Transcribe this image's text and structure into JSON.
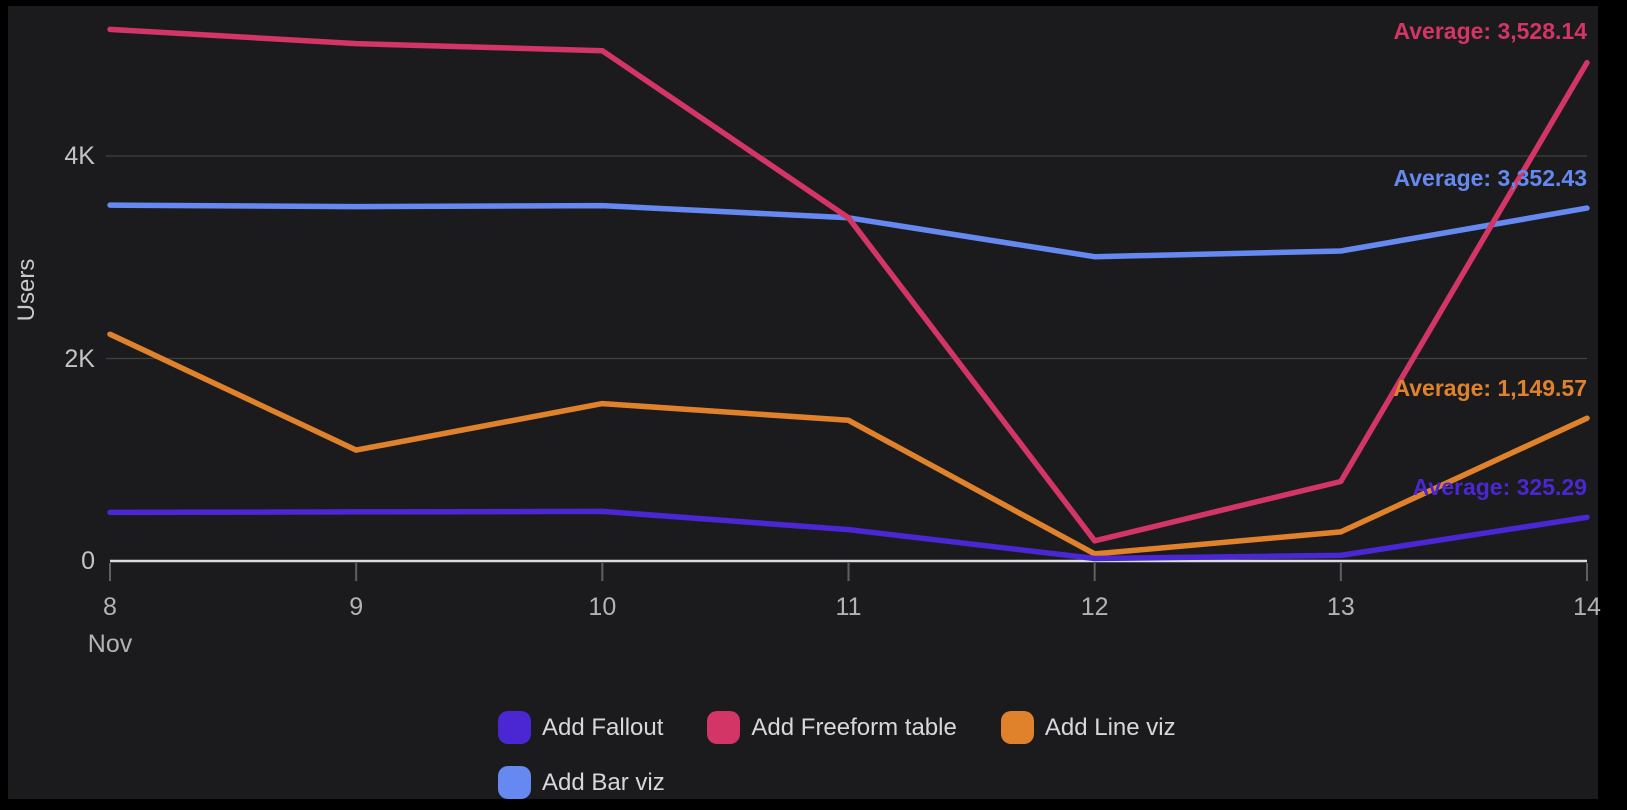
{
  "widget": {
    "name": "users-trend-line-chart"
  },
  "colors": {
    "background": "#1b1b1d",
    "frame": "#000000",
    "gridline": "#404040",
    "axis_line": "#dcdcdc",
    "tick": "#5f5f5f",
    "y_label_text": "#c4c4c4",
    "x_label_text": "#b3b3b3",
    "legend_text": "#d8d8d8"
  },
  "chart_data": {
    "type": "line",
    "title": "",
    "ylabel": "Users",
    "xlabel": "",
    "x_month": "Nov",
    "x_labels": [
      "8",
      "9",
      "10",
      "11",
      "12",
      "13",
      "14"
    ],
    "y_ticks": [
      {
        "value": 0,
        "label": "0"
      },
      {
        "value": 2000,
        "label": "2K"
      },
      {
        "value": 4000,
        "label": "4K"
      }
    ],
    "ylim": [
      0,
      5550
    ],
    "grid": "horizontal",
    "legend_position": "bottom",
    "series": [
      {
        "name": "Add Fallout",
        "color": "#4b26d3",
        "values": [
          480,
          485,
          490,
          310,
          25,
          55,
          432
        ],
        "average": 325.29,
        "average_label": "Average: 325.29"
      },
      {
        "name": "Add Freeform table",
        "color": "#d23566",
        "values": [
          5250,
          5110,
          5040,
          3390,
          200,
          785,
          4922
        ],
        "average": 3528.14,
        "average_label": "Average: 3,528.14"
      },
      {
        "name": "Add Line viz",
        "color": "#e0822b",
        "values": [
          2240,
          1095,
          1555,
          1390,
          70,
          287,
          1410
        ],
        "average": 1149.57,
        "average_label": "Average: 1,149.57"
      },
      {
        "name": "Add Bar viz",
        "color": "#6589f0",
        "values": [
          3515,
          3500,
          3510,
          3390,
          3005,
          3062,
          3485
        ],
        "average": 3352.43,
        "average_label": "Average: 3,352.43"
      }
    ],
    "draw_order": [
      "Add Bar viz",
      "Add Line viz",
      "Add Fallout",
      "Add Freeform table"
    ]
  }
}
